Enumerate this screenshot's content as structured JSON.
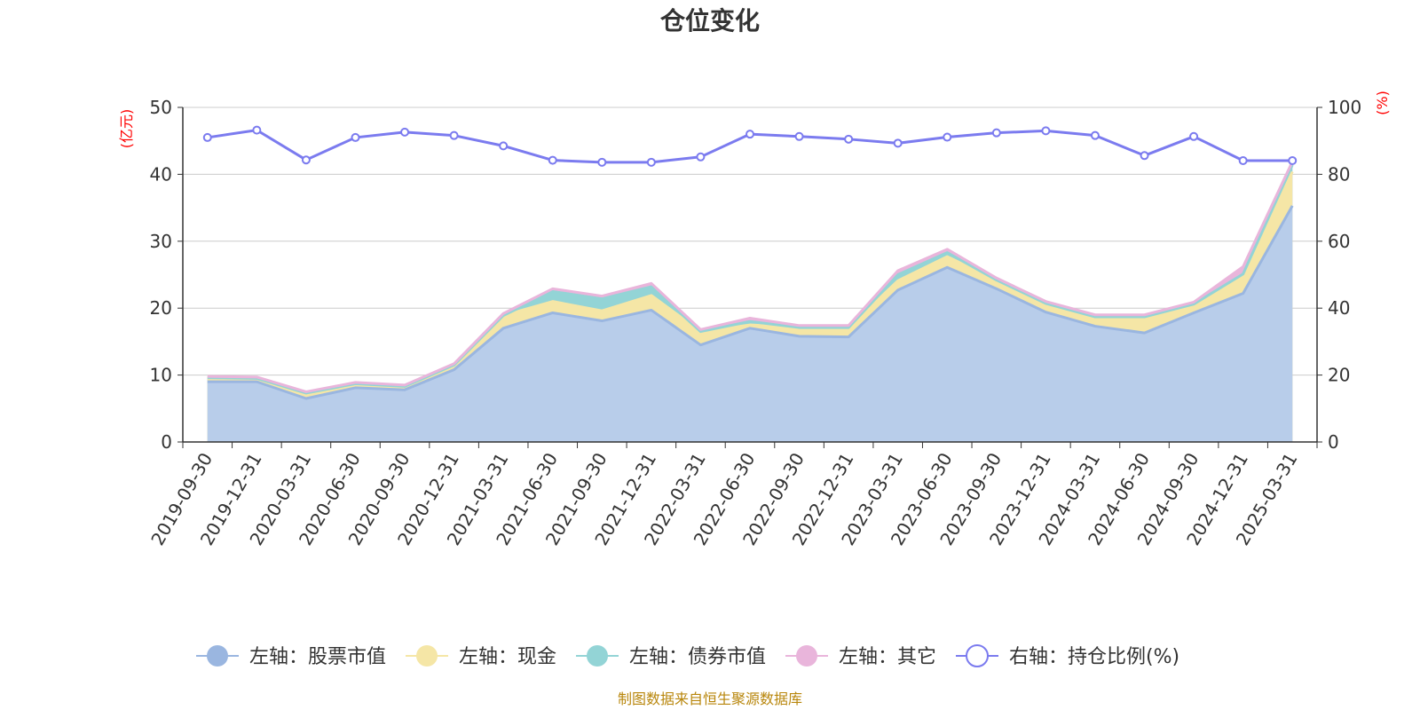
{
  "title": "仓位变化",
  "source_note": "制图数据来自恒生聚源数据库",
  "left_unit": "(亿元)",
  "right_unit": "(%)",
  "colors": {
    "stock": "#9ab6e0",
    "stock_fill": "#b8cdea",
    "cash": "#f5e6a6",
    "bond": "#93d4d6",
    "other": "#e9b5db",
    "ratio": "#7b7bef",
    "grid": "#cccccc",
    "axis": "#333333"
  },
  "chart_data": {
    "type": "area",
    "categories": [
      "2019-09-30",
      "2019-12-31",
      "2020-03-31",
      "2020-06-30",
      "2020-09-30",
      "2020-12-31",
      "2021-03-31",
      "2021-06-30",
      "2021-09-30",
      "2021-12-31",
      "2022-03-31",
      "2022-06-30",
      "2022-09-30",
      "2022-12-31",
      "2023-03-31",
      "2023-06-30",
      "2023-09-30",
      "2023-12-31",
      "2024-03-31",
      "2024-06-30",
      "2024-09-30",
      "2024-12-31",
      "2025-03-31"
    ],
    "y_left": {
      "min": 0,
      "max": 50,
      "ticks": [
        0,
        10,
        20,
        30,
        40,
        50
      ]
    },
    "y_right": {
      "min": 0,
      "max": 100,
      "ticks": [
        0,
        20,
        40,
        60,
        80,
        100
      ]
    },
    "legend_position": "bottom",
    "grid": true,
    "series": [
      {
        "name": "左轴：股票市值",
        "axis": "left",
        "key": "stock",
        "values": [
          9.0,
          9.0,
          6.5,
          8.1,
          7.8,
          10.8,
          17.0,
          19.3,
          18.1,
          19.7,
          14.5,
          17.0,
          15.8,
          15.7,
          22.7,
          26.1,
          22.9,
          19.4,
          17.3,
          16.3,
          19.3,
          22.2,
          35.3
        ]
      },
      {
        "name": "左轴：现金",
        "axis": "left",
        "key": "cash",
        "values": [
          0.6,
          0.5,
          0.8,
          0.6,
          0.5,
          0.7,
          1.9,
          1.7,
          1.5,
          2.2,
          2.0,
          0.5,
          1.3,
          1.4,
          1.4,
          1.6,
          1.3,
          1.3,
          1.4,
          2.4,
          1.3,
          2.5,
          5.1
        ]
      },
      {
        "name": "左轴：债券市值",
        "axis": "left",
        "key": "bond",
        "values": [
          0,
          0,
          0,
          0,
          0,
          0,
          0,
          1.5,
          1.8,
          1.3,
          0,
          0.5,
          0,
          0,
          0.9,
          0.6,
          0,
          0,
          0,
          0,
          0,
          0.4,
          1.0
        ]
      },
      {
        "name": "左轴：其它",
        "axis": "left",
        "key": "other",
        "values": [
          0.2,
          0.2,
          0.2,
          0.2,
          0.2,
          0.2,
          0.3,
          0.4,
          0.4,
          0.5,
          0.3,
          0.5,
          0.3,
          0.3,
          0.6,
          0.5,
          0.3,
          0.3,
          0.3,
          0.3,
          0.3,
          1.1,
          0.5
        ]
      },
      {
        "name": "右轴：持仓比例(%)",
        "axis": "right",
        "key": "ratio",
        "values": [
          91.0,
          93.2,
          84.3,
          91.0,
          92.6,
          91.6,
          88.5,
          84.2,
          83.6,
          83.6,
          85.2,
          92.0,
          91.3,
          90.5,
          89.3,
          91.1,
          92.4,
          93.0,
          91.6,
          85.6,
          91.3,
          84.1,
          84.1
        ]
      }
    ]
  }
}
